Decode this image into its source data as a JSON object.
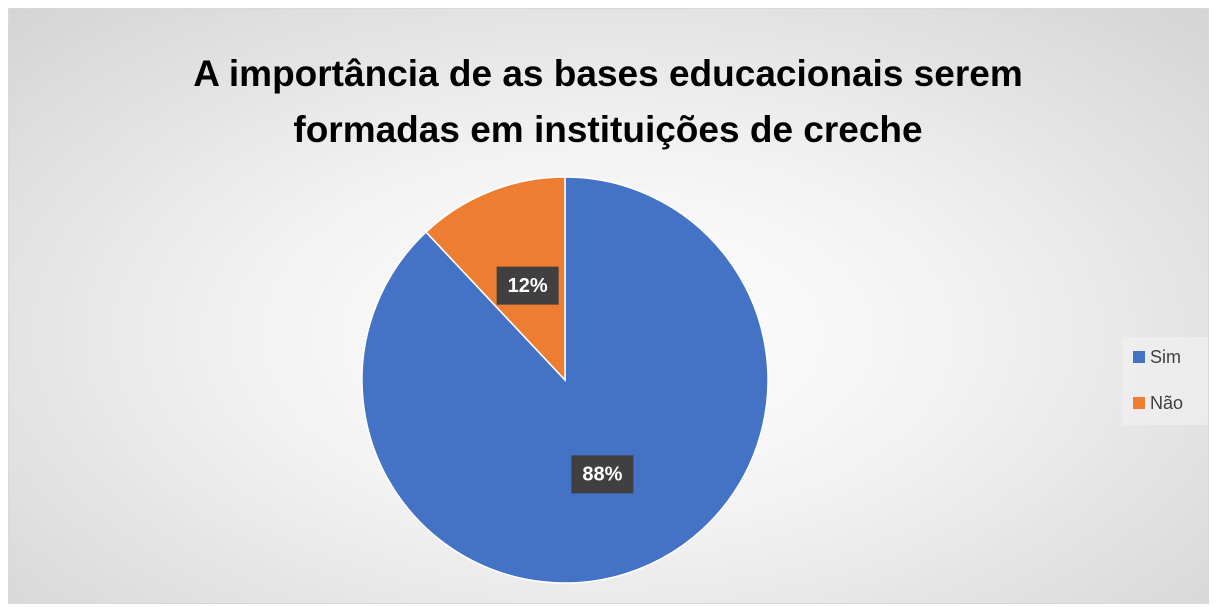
{
  "chart_data": {
    "type": "pie",
    "title": "A importância de as bases educacionais serem formadas em instituições de creche",
    "categories": [
      "Sim",
      "Não"
    ],
    "values": [
      88,
      12
    ],
    "value_labels": [
      "88%",
      "12%"
    ],
    "colors": [
      "#4472c4",
      "#ed7d31"
    ],
    "legend": "right"
  }
}
